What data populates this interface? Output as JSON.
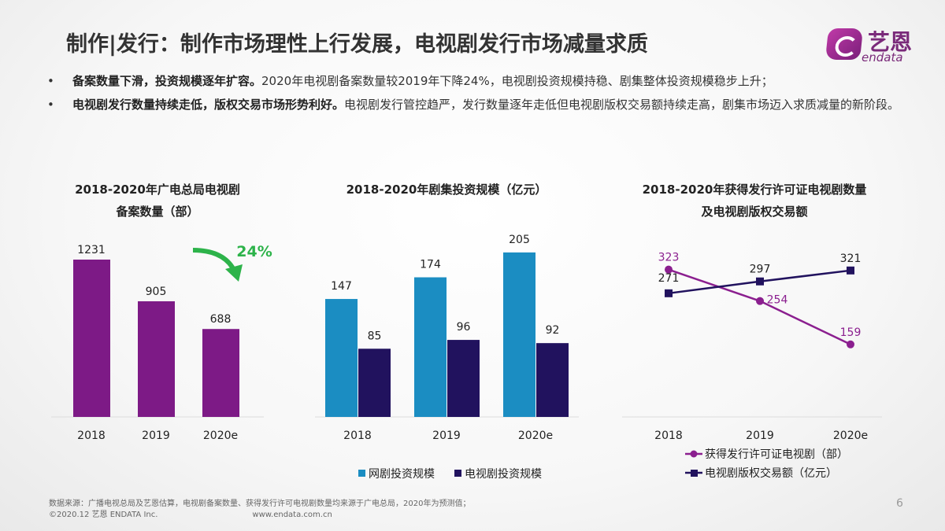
{
  "header": {
    "title": "制作|发行：制作市场理性上行发展，电视剧发行市场减量求质",
    "logo_cn": "艺恩",
    "logo_en": "endata"
  },
  "bullets": [
    {
      "marker": "•",
      "bold": "备案数量下滑，投资规模逐年扩容。",
      "text": "2020年电视剧备案数量较2019年下降24%，电视剧投资规模持稳、剧集整体投资规模稳步上升；"
    },
    {
      "marker": "•",
      "bold": "电视剧发行数量持续走低，版权交易市场形势利好。",
      "text": "电视剧发行管控趋严，发行数量逐年走低但电视剧版权交易额持续走高，剧集市场迈入求质减量的新阶段。"
    }
  ],
  "footer": {
    "source": "数据来源：广播电视总局及艺恩估算，电视剧备案数量、获得发行许可电视剧数量均来源于广电总局，2020年为预测值；",
    "copyright": "©2020.12 艺恩 ENDATA Inc.",
    "url": "www.endata.com.cn",
    "page": "6"
  },
  "colors": {
    "purple": "#7d1a86",
    "blue": "#1b8dc2",
    "navy": "#21125e",
    "green": "#2db34a",
    "line_purple": "#8b1f8f"
  },
  "chart_data": [
    {
      "type": "bar",
      "title_lines": [
        "2018-2020年广电总局电视剧",
        "备案数量（部）"
      ],
      "categories": [
        "2018",
        "2019",
        "2020e"
      ],
      "values": [
        1231,
        905,
        688
      ],
      "annotation": "24%",
      "annotation_icon": "down-arrow-icon",
      "ylim": [
        0,
        1231
      ]
    },
    {
      "type": "bar",
      "title_lines": [
        "2018-2020年剧集投资规模（亿元）"
      ],
      "categories": [
        "2018",
        "2019",
        "2020e"
      ],
      "series": [
        {
          "name": "网剧投资规模",
          "values": [
            147,
            174,
            205
          ]
        },
        {
          "name": "电视剧投资规模",
          "values": [
            85,
            96,
            92
          ]
        }
      ],
      "legend": "bottom"
    },
    {
      "type": "line",
      "title_lines": [
        "2018-2020年获得发行许可证电视剧数量",
        "及电视剧版权交易额"
      ],
      "categories": [
        "2018",
        "2019",
        "2020e"
      ],
      "series": [
        {
          "name": "获得发行许可证电视剧（部）",
          "values": [
            323,
            254,
            159
          ],
          "marker": "circle"
        },
        {
          "name": "电视剧版权交易额（亿元）",
          "values": [
            271,
            297,
            321
          ],
          "marker": "square"
        }
      ],
      "legend": "bottom"
    }
  ]
}
